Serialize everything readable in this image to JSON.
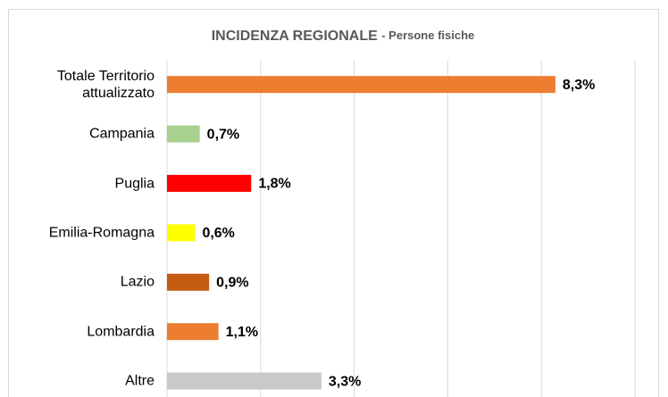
{
  "chart_data": {
    "type": "bar",
    "orientation": "horizontal",
    "title": "INCIDENZA REGIONALE",
    "subtitle": "- Persone fisiche",
    "categories": [
      "Totale Territorio attualizzato",
      "Campania",
      "Puglia",
      "Emilia-Romagna",
      "Lazio",
      "Lombardia",
      "Altre"
    ],
    "values": [
      8.3,
      0.7,
      1.8,
      0.6,
      0.9,
      1.1,
      3.3
    ],
    "value_labels": [
      "8,3%",
      "0,7%",
      "1,8%",
      "0,6%",
      "0,9%",
      "1,1%",
      "3,3%"
    ],
    "colors": [
      "#ed7d31",
      "#a9d18e",
      "#ff0000",
      "#ffff00",
      "#c55a11",
      "#ed7d31",
      "#c9c9c9"
    ],
    "xlim": [
      0,
      10
    ],
    "xticks": [
      0,
      2,
      4,
      6,
      8,
      10
    ],
    "grid": true
  }
}
